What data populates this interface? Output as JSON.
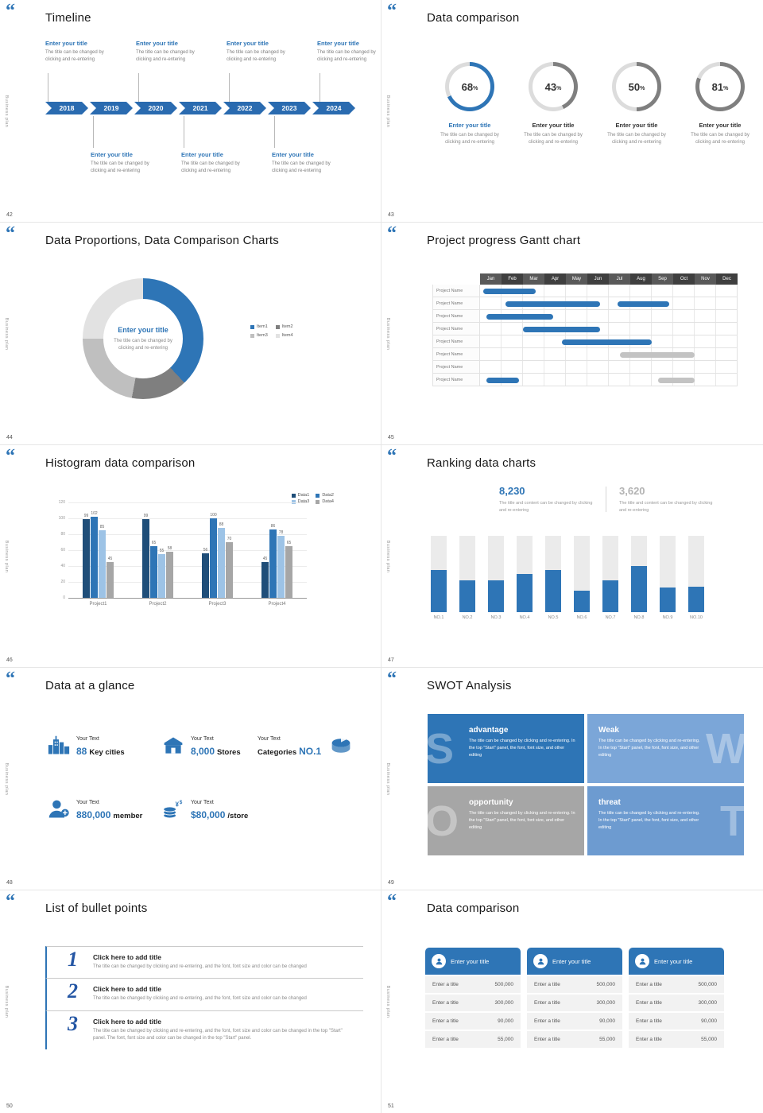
{
  "common": {
    "quote_icon": "“",
    "side_text": "Business plan"
  },
  "slides": {
    "timeline": {
      "number": "42",
      "title": "Timeline",
      "years": [
        "2018",
        "2019",
        "2020",
        "2021",
        "2022",
        "2023",
        "2024"
      ],
      "top_items": [
        {
          "title": "Enter your title",
          "desc": "The title can be changed by clicking and re-entering"
        },
        {
          "title": "Enter your title",
          "desc": "The title can be changed by clicking and re-entering"
        },
        {
          "title": "Enter your title",
          "desc": "The title can be changed by clicking and re-entering"
        },
        {
          "title": "Enter your title",
          "desc": "The title can be changed by clicking and re-entering"
        }
      ],
      "bottom_items": [
        {
          "title": "Enter your title",
          "desc": "The title can be changed by clicking and re-entering"
        },
        {
          "title": "Enter your title",
          "desc": "The title can be changed by clicking and re-entering"
        },
        {
          "title": "Enter your title",
          "desc": "The title can be changed by clicking and re-entering"
        }
      ]
    },
    "donuts": {
      "number": "43",
      "title": "Data comparison",
      "items": [
        {
          "percent": 68,
          "title": "Enter your title",
          "desc": "The title can be changed by clicking and re-entering",
          "fill": "#2e75b6",
          "title_color": "#2e75b6"
        },
        {
          "percent": 43,
          "title": "Enter your title",
          "desc": "The title can be changed by clicking and re-entering",
          "fill": "#7f7f7f",
          "title_color": "#333333"
        },
        {
          "percent": 50,
          "title": "Enter your title",
          "desc": "The title can be changed by clicking and re-entering",
          "fill": "#7f7f7f",
          "title_color": "#333333"
        },
        {
          "percent": 81,
          "title": "Enter your title",
          "desc": "The title can be changed by clicking and re-entering",
          "fill": "#7f7f7f",
          "title_color": "#333333"
        }
      ]
    },
    "pie": {
      "number": "44",
      "title": "Data Proportions, Data Comparison Charts",
      "center_title": "Enter your title",
      "center_desc": "The title can be changed by clicking and re-entering",
      "segments": [
        {
          "label": "Item1",
          "value": 38,
          "color": "#2e75b6"
        },
        {
          "label": "Item2",
          "value": 15,
          "color": "#7f7f7f"
        },
        {
          "label": "Item3",
          "value": 22,
          "color": "#bfbfbf"
        },
        {
          "label": "Item4",
          "value": 25,
          "color": "#e2e2e2"
        }
      ]
    },
    "gantt": {
      "number": "45",
      "title": "Project progress Gantt chart",
      "months": [
        "Jan",
        "Feb",
        "Mar",
        "Apr",
        "May",
        "Jun",
        "Jul",
        "Aug",
        "Sep",
        "Oct",
        "Nov",
        "Dec"
      ],
      "row_label": "Project Name",
      "row_count": 8,
      "bars": [
        {
          "row": 0,
          "start": 0.15,
          "end": 2.6,
          "color": "#2e75b6"
        },
        {
          "row": 1,
          "start": 1.2,
          "end": 5.6,
          "color": "#2e75b6"
        },
        {
          "row": 1,
          "start": 6.4,
          "end": 8.8,
          "color": "#2e75b6"
        },
        {
          "row": 2,
          "start": 0.3,
          "end": 3.4,
          "color": "#2e75b6"
        },
        {
          "row": 3,
          "start": 2.0,
          "end": 5.6,
          "color": "#2e75b6"
        },
        {
          "row": 4,
          "start": 3.8,
          "end": 8.0,
          "color": "#2e75b6"
        },
        {
          "row": 5,
          "start": 6.5,
          "end": 10.0,
          "color": "#c3c3c3"
        },
        {
          "row": 7,
          "start": 0.3,
          "end": 1.8,
          "color": "#2e75b6"
        },
        {
          "row": 7,
          "start": 8.3,
          "end": 10.0,
          "color": "#c3c3c3"
        }
      ]
    },
    "hist": {
      "number": "46",
      "title": "Histogram data comparison",
      "categories": [
        "Project1",
        "Project2",
        "Project3",
        "Project4"
      ],
      "yticks": [
        0,
        20,
        40,
        60,
        80,
        100,
        120
      ],
      "ymax": 120,
      "series": [
        {
          "name": "Data1",
          "color": "#1f4e79",
          "values": [
            99,
            99,
            56,
            45
          ]
        },
        {
          "name": "Data2",
          "color": "#2e75b6",
          "values": [
            102,
            65,
            100,
            86
          ]
        },
        {
          "name": "Data3",
          "color": "#9dc3e6",
          "values": [
            85,
            55,
            88,
            78
          ]
        },
        {
          "name": "Data4",
          "color": "#a6a6a6",
          "values": [
            45,
            58,
            70,
            65
          ]
        }
      ]
    },
    "rank": {
      "number": "47",
      "title": "Ranking data charts",
      "stats": [
        {
          "value": "8,230",
          "desc": "The title and content can be changed by clicking and re-entering",
          "color": "#2e75b6"
        },
        {
          "value": "3,620",
          "desc": "The title and content can be changed by clicking and re-entering",
          "color": "#b3b3b3"
        }
      ],
      "categories": [
        "NO.1",
        "NO.2",
        "NO.3",
        "NO.4",
        "NO.5",
        "NO.6",
        "NO.7",
        "NO.8",
        "NO.9",
        "NO.10"
      ],
      "values": [
        55,
        42,
        42,
        50,
        55,
        28,
        42,
        60,
        32,
        33
      ],
      "max": 100
    },
    "glance": {
      "number": "48",
      "title": "Data at a glance",
      "items": [
        {
          "icon": "city",
          "icon_side": "left",
          "label": "Your Text",
          "parts": [
            {
              "t": "88",
              "c": "blue"
            },
            {
              "t": "Key cities",
              "c": "dark"
            }
          ]
        },
        {
          "icon": "store",
          "icon_side": "left",
          "label": "Your Text",
          "parts": [
            {
              "t": "8,000",
              "c": "blue"
            },
            {
              "t": "Stores",
              "c": "dark"
            }
          ]
        },
        {
          "icon": "pie",
          "icon_side": "right",
          "label": "Your Text",
          "parts": [
            {
              "t": "Categories",
              "c": "dark"
            },
            {
              "t": "NO.1",
              "c": "blue"
            }
          ]
        },
        {
          "icon": "member",
          "icon_side": "left",
          "label": "Your Text",
          "parts": [
            {
              "t": "880,000",
              "c": "blue"
            },
            {
              "t": "member",
              "c": "dark"
            }
          ]
        },
        {
          "icon": "money",
          "icon_side": "left",
          "label": "Your Text",
          "parts": [
            {
              "t": "$80,000",
              "c": "blue"
            },
            {
              "t": "/store",
              "c": "dark"
            }
          ]
        }
      ]
    },
    "swot": {
      "number": "49",
      "title": "SWOT Analysis",
      "blocks": [
        {
          "letter": "S",
          "title": "advantage",
          "desc": "The title can be changed by clicking and re-entering. In the top \"Start\" panel, the font, font size, and other editing",
          "color": "#2e75b6",
          "side": "left"
        },
        {
          "letter": "W",
          "title": "Weak",
          "desc": "The title can be changed by clicking and re-entering. In the top \"Start\" panel, the font, font size, and other editing",
          "color": "#7ba6d8",
          "side": "right"
        },
        {
          "letter": "O",
          "title": "opportunity",
          "desc": "The title can be changed by clicking and re-entering. In the top \"Start\" panel, the font, font size, and other editing",
          "color": "#a6a6a6",
          "side": "left"
        },
        {
          "letter": "T",
          "title": "threat",
          "desc": "The title can be changed by clicking and re-entering. In the top \"Start\" panel, the font, font size, and other editing",
          "color": "#6d9bd0",
          "side": "right"
        }
      ]
    },
    "bullets": {
      "number": "50",
      "title": "List of bullet points",
      "items": [
        {
          "num": "1",
          "title": "Click here to add title",
          "desc": "The title can be changed by clicking and re-entering, and the font, font size and color can be changed"
        },
        {
          "num": "2",
          "title": "Click here to add title",
          "desc": "The title can be changed by clicking and re-entering, and the font, font size and color can be changed"
        },
        {
          "num": "3",
          "title": "Click here to add title",
          "desc": "The title can be changed by clicking and re-entering, and the font, font size and color can be changed in the top \"Start\" panel. The font, font size and color can be changed in the top \"Start\" panel."
        }
      ]
    },
    "cards": {
      "number": "51",
      "title": "Data comparison",
      "cards": [
        {
          "title": "Enter your title",
          "rows": [
            {
              "label": "Enter a title",
              "value": "500,000"
            },
            {
              "label": "Enter a title",
              "value": "300,000"
            },
            {
              "label": "Enter a title",
              "value": "90,000"
            },
            {
              "label": "Enter a title",
              "value": "55,000"
            }
          ]
        },
        {
          "title": "Enter your title",
          "rows": [
            {
              "label": "Enter a title",
              "value": "500,000"
            },
            {
              "label": "Enter a title",
              "value": "300,000"
            },
            {
              "label": "Enter a title",
              "value": "90,000"
            },
            {
              "label": "Enter a title",
              "value": "55,000"
            }
          ]
        },
        {
          "title": "Enter your title",
          "rows": [
            {
              "label": "Enter a title",
              "value": "500,000"
            },
            {
              "label": "Enter a title",
              "value": "300,000"
            },
            {
              "label": "Enter a title",
              "value": "90,000"
            },
            {
              "label": "Enter a title",
              "value": "55,000"
            }
          ]
        }
      ]
    }
  }
}
